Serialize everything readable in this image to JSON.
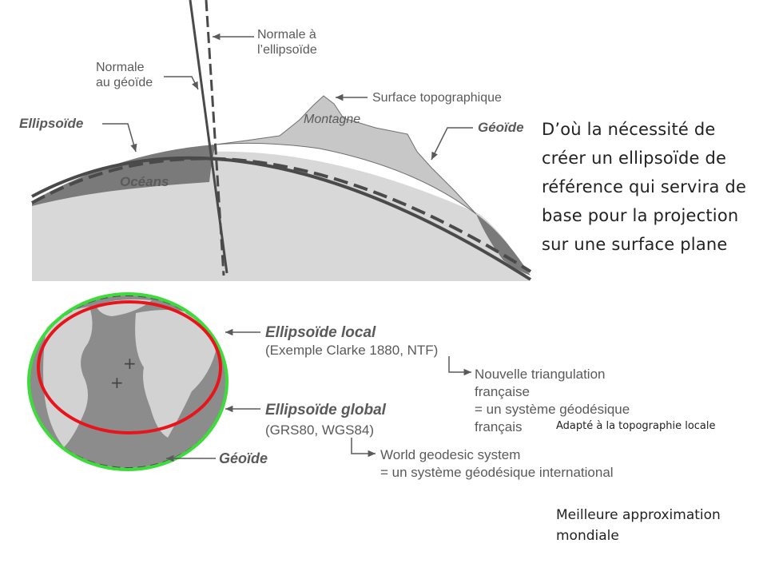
{
  "top_diagram": {
    "labels": {
      "normale_ellipsoide_1": "Normale à",
      "normale_ellipsoide_2": "l’ellipsoïde",
      "normale_geoide_1": "Normale",
      "normale_geoide_2": "au géoïde",
      "surface_topo": "Surface topographique",
      "ellipsoide": "Ellipsoïde",
      "montagne": "Montagne",
      "geoide": "Géoïde",
      "oceans": "Océans"
    }
  },
  "bottom_diagram": {
    "labels": {
      "ellipsoide_local": "Ellipsoïde local",
      "exemple_clarke": "(Exemple Clarke 1880, NTF)",
      "ntf_1": "Nouvelle triangulation",
      "ntf_2": "française",
      "ntf_3": "= un système géodésique",
      "ntf_4": "français",
      "ellipsoide_global": "Ellipsoïde global",
      "grs_wgs": "(GRS80, WGS84)",
      "geoide": "Géoïde",
      "wgs_1": "World geodesic system",
      "wgs_2": "= un système géodésique international"
    },
    "colors": {
      "local_ellipse": "#e8141b",
      "global_ellipse": "#3ddc3a"
    }
  },
  "notes": {
    "main": "D’où la nécessité de créer un ellipsoïde de référence qui servira de base pour la projection sur une surface plane",
    "local": "Adapté à la topographie locale",
    "global": "Meilleure approximation mondiale"
  }
}
